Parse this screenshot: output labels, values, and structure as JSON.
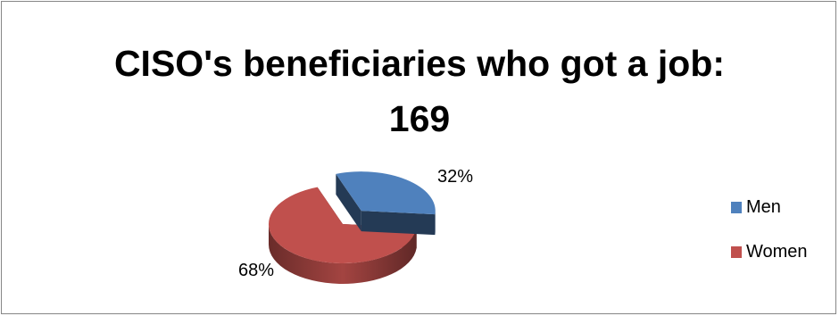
{
  "chart_data": {
    "type": "pie",
    "title_line1": "CISO's beneficiaries who got a job:",
    "title_line2": "169",
    "categories": [
      "Men",
      "Women"
    ],
    "values": [
      32,
      68
    ],
    "value_labels": [
      "32%",
      "68%"
    ],
    "colors": [
      "#4F81BD",
      "#C0504D"
    ],
    "legend_position": "right",
    "style": "3d-exploded"
  }
}
